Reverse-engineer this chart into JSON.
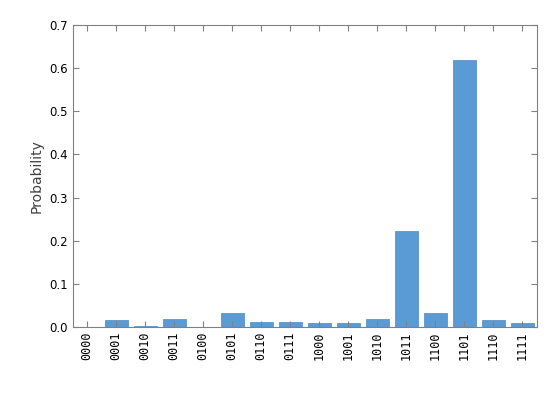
{
  "categories": [
    "0000",
    "0001",
    "0010",
    "0011",
    "0100",
    "0101",
    "0110",
    "0111",
    "1000",
    "1001",
    "1010",
    "1011",
    "1100",
    "1101",
    "1110",
    "1111"
  ],
  "values": [
    0.0,
    0.015,
    0.003,
    0.017,
    0.0,
    0.032,
    0.012,
    0.012,
    0.01,
    0.01,
    0.017,
    0.223,
    0.031,
    0.62,
    0.015,
    0.01
  ],
  "bar_color": "#5b9bd5",
  "bar_edge_color": "#4a8ac4",
  "ylabel": "Probability",
  "ylim": [
    0,
    0.7
  ],
  "yticks": [
    0.0,
    0.1,
    0.2,
    0.3,
    0.4,
    0.5,
    0.6,
    0.7
  ],
  "xlabel": "",
  "title": "",
  "bar_width": 0.8,
  "figsize": [
    5.59,
    4.19
  ],
  "dpi": 100,
  "spine_color": "#808080",
  "tick_color": "#808080",
  "label_color": "#404040",
  "font_size": 8.5
}
